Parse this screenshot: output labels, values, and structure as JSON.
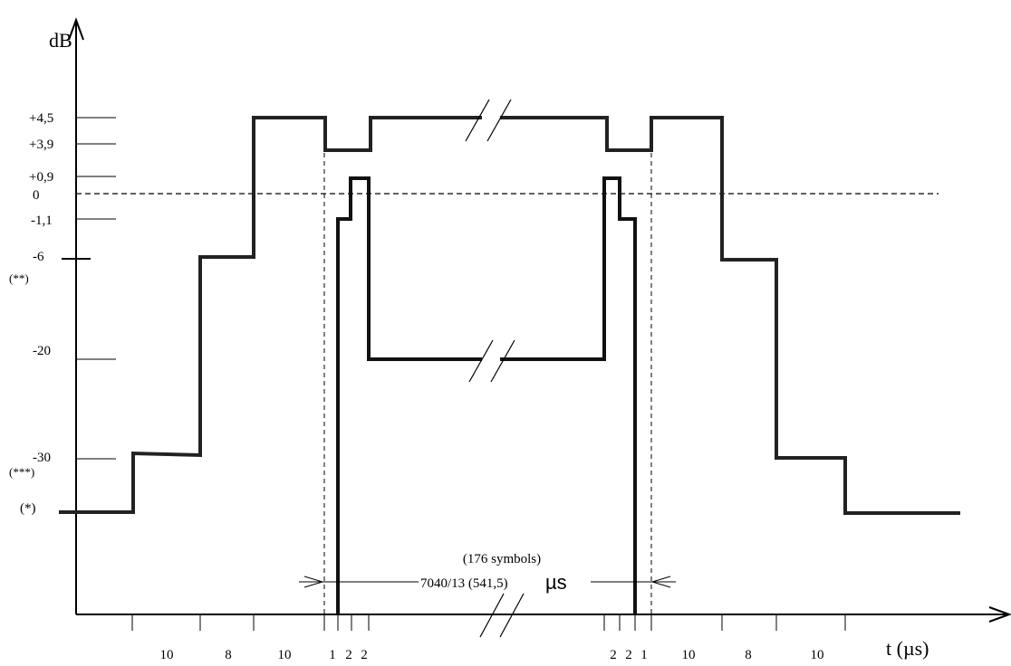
{
  "y_axis": {
    "label": "dB",
    "ticks": [
      "+4,5",
      "+3,9",
      "+0,9",
      "0",
      "-1,1",
      "-6",
      "-20",
      "-30"
    ],
    "notes": [
      "(**)",
      "(***)",
      "(*)"
    ]
  },
  "x_axis": {
    "label": "t (µs)",
    "durations": [
      "10",
      "8",
      "10",
      "1",
      "2",
      "2",
      "2",
      "2",
      "1",
      "10",
      "8",
      "10"
    ]
  },
  "span": {
    "symbols": "(176 symbols)",
    "value": "7040/13  (541,5)",
    "unit": "µs"
  },
  "colors": {
    "line": "#000000",
    "background": "#ffffff"
  }
}
